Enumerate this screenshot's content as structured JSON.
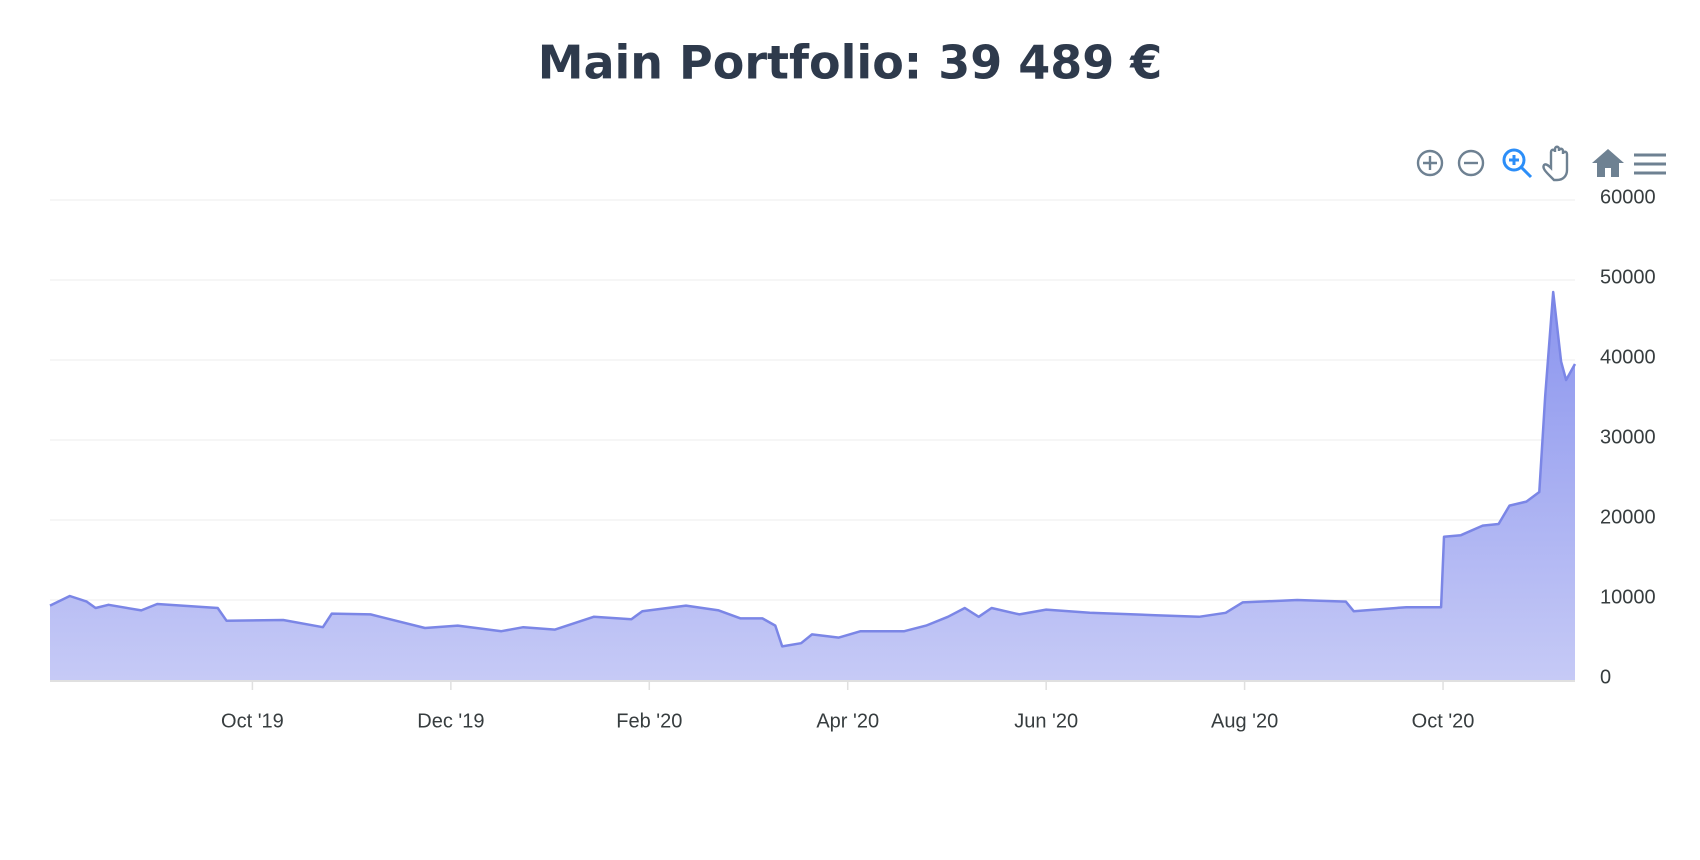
{
  "chart_data": {
    "type": "area",
    "title": "Main Portfolio: 39 489 €",
    "color": "#7b86e6",
    "x": [
      -2.04,
      -1.84,
      -1.67,
      -1.58,
      -1.45,
      -1.12,
      -0.96,
      -0.35,
      -0.26,
      0.31,
      0.71,
      0.8,
      1.19,
      1.74,
      2.07,
      2.51,
      2.73,
      3.05,
      3.44,
      3.82,
      3.93,
      4.37,
      4.7,
      4.92,
      5.14,
      5.27,
      5.34,
      5.53,
      5.64,
      5.91,
      6.13,
      6.57,
      6.79,
      7.01,
      7.18,
      7.32,
      7.45,
      7.73,
      8.0,
      8.44,
      9.1,
      9.54,
      9.81,
      9.98,
      10.53,
      11.02,
      11.1,
      11.63,
      11.98,
      12.01,
      12.18,
      12.4,
      12.56,
      12.67,
      12.84,
      12.97,
      13.03,
      13.11,
      13.19,
      13.24,
      13.33
    ],
    "values": [
      9300,
      10500,
      9800,
      9000,
      9400,
      8700,
      9500,
      9000,
      7400,
      7500,
      6600,
      8300,
      8200,
      6500,
      6800,
      6100,
      6600,
      6300,
      7900,
      7600,
      8600,
      9300,
      8700,
      7700,
      7700,
      6800,
      4200,
      4600,
      5700,
      5300,
      6100,
      6100,
      6800,
      7900,
      9000,
      7900,
      9000,
      8200,
      8800,
      8400,
      8100,
      7900,
      8400,
      9700,
      10000,
      9800,
      8600,
      9100,
      9100,
      17900,
      18100,
      19300,
      19500,
      21800,
      22300,
      23500,
      35500,
      48500,
      39800,
      37500,
      39500
    ],
    "xlim": [
      -2.04,
      13.33
    ],
    "xticks": [
      {
        "value": 0,
        "label": "Oct '19"
      },
      {
        "value": 2,
        "label": "Dec '19"
      },
      {
        "value": 4,
        "label": "Feb '20"
      },
      {
        "value": 6,
        "label": "Apr '20"
      },
      {
        "value": 8,
        "label": "Jun '20"
      },
      {
        "value": 10,
        "label": "Aug '20"
      },
      {
        "value": 12,
        "label": "Oct '20"
      }
    ],
    "ylim": [
      0,
      60000
    ],
    "yticks": [
      0,
      10000,
      20000,
      30000,
      40000,
      50000,
      60000
    ],
    "grid": true
  }
}
